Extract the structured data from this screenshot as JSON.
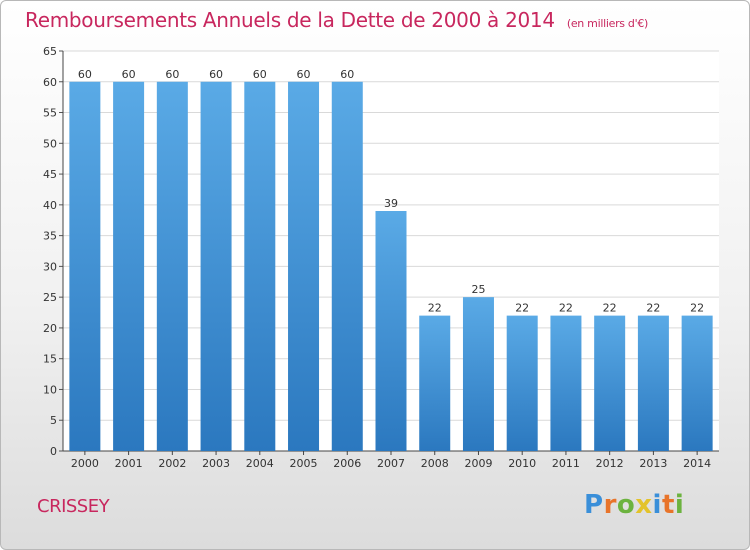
{
  "title": "Remboursements Annuels de la Dette de 2000 à 2014",
  "unit": "(en milliers d'€)",
  "commune": "CRISSEY",
  "logo": "Proxiti",
  "colors": {
    "title": "#c8275e",
    "bar_top": "#5aaae6",
    "bar_bottom": "#2b78bf",
    "grid": "#d9d9d9"
  },
  "chart_data": {
    "type": "bar",
    "categories": [
      "2000",
      "2001",
      "2002",
      "2003",
      "2004",
      "2005",
      "2006",
      "2007",
      "2008",
      "2009",
      "2010",
      "2011",
      "2012",
      "2013",
      "2014"
    ],
    "values": [
      60,
      60,
      60,
      60,
      60,
      60,
      60,
      39,
      22,
      25,
      22,
      22,
      22,
      22,
      22
    ],
    "title": "Remboursements Annuels de la Dette de 2000 à 2014",
    "xlabel": "",
    "ylabel": "",
    "ylim": [
      0,
      65
    ],
    "yticks": [
      0,
      5,
      10,
      15,
      20,
      25,
      30,
      35,
      40,
      45,
      50,
      55,
      60,
      65
    ],
    "grid": true,
    "data_labels": true
  }
}
